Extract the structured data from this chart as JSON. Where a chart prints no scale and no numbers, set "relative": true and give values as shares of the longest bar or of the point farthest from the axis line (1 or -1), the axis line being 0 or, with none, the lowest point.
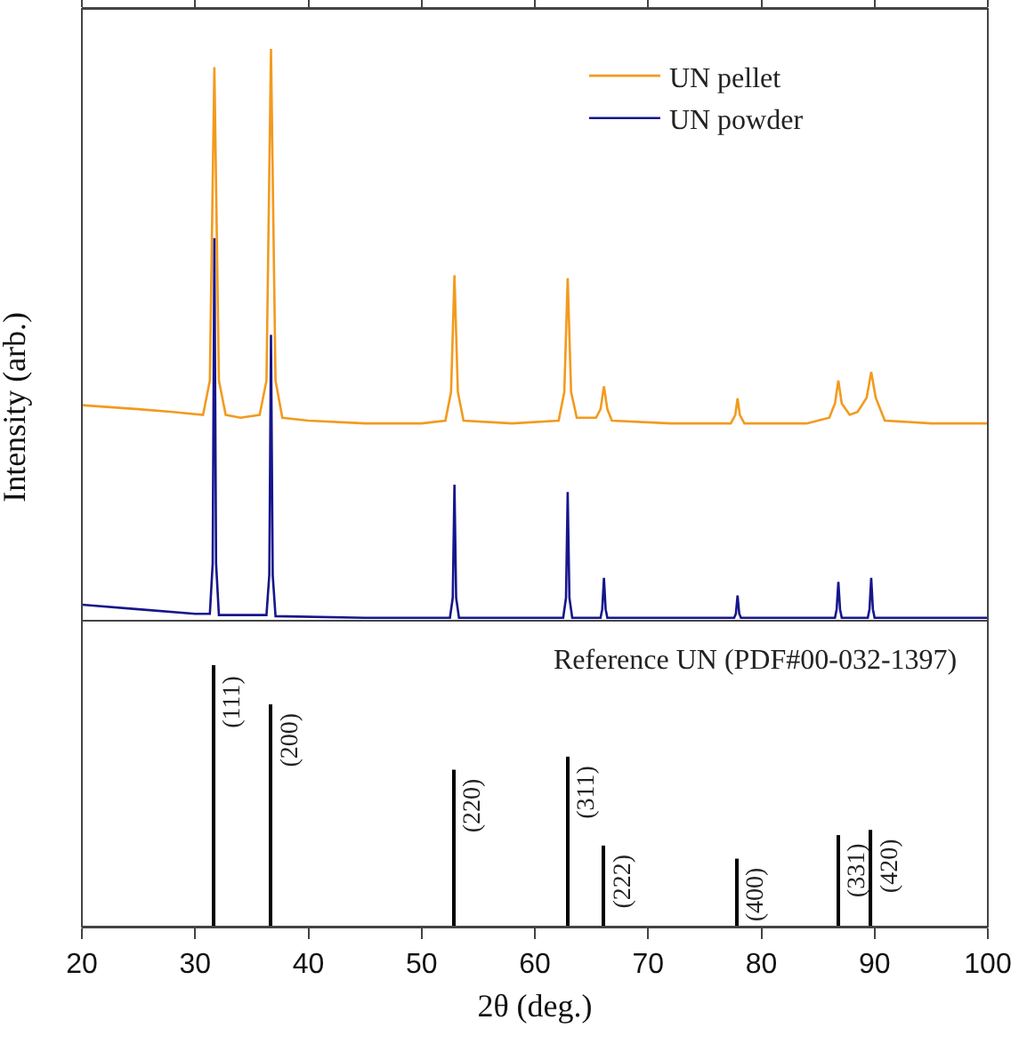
{
  "chart_data": [
    {
      "type": "line",
      "relative": true,
      "ylabel": "Intensity (arb.)",
      "xlim": [
        20,
        100
      ],
      "xticks": [
        20,
        30,
        40,
        50,
        60,
        70,
        80,
        90,
        100
      ],
      "tick_labels": false,
      "legend": "top right",
      "series": [
        {
          "name": "UN pellet",
          "color": "#f39a1e",
          "x": [
            20,
            25,
            28,
            30.7,
            31.3,
            31.7,
            32.1,
            32.7,
            34,
            35.7,
            36.3,
            36.7,
            37.1,
            37.7,
            40,
            45,
            50,
            52.1,
            52.6,
            52.9,
            53.2,
            53.7,
            58,
            62.1,
            62.6,
            62.9,
            63.2,
            63.7,
            65.4,
            65.8,
            66.1,
            66.4,
            66.8,
            72,
            77.3,
            77.7,
            77.9,
            78.1,
            78.5,
            84,
            86.0,
            86.5,
            86.8,
            87.1,
            87.8,
            88.5,
            89.3,
            89.7,
            90.1,
            90.9,
            95,
            100
          ],
          "values": [
            0.377,
            0.37,
            0.365,
            0.36,
            0.42,
            0.968,
            0.42,
            0.36,
            0.355,
            0.36,
            0.42,
            1.0,
            0.42,
            0.355,
            0.35,
            0.345,
            0.345,
            0.35,
            0.4,
            0.604,
            0.4,
            0.35,
            0.345,
            0.35,
            0.4,
            0.599,
            0.4,
            0.355,
            0.355,
            0.37,
            0.41,
            0.37,
            0.35,
            0.345,
            0.345,
            0.36,
            0.389,
            0.36,
            0.345,
            0.345,
            0.355,
            0.38,
            0.42,
            0.38,
            0.36,
            0.365,
            0.39,
            0.435,
            0.39,
            0.35,
            0.345,
            0.345
          ]
        },
        {
          "name": "UN powder",
          "color": "#16168c",
          "x": [
            20,
            25,
            30,
            31.3,
            31.55,
            31.7,
            31.85,
            32.1,
            36.3,
            36.55,
            36.7,
            36.85,
            37.1,
            45,
            52.5,
            52.75,
            52.9,
            53.05,
            53.3,
            62.5,
            62.75,
            62.9,
            63.05,
            63.3,
            65.8,
            65.95,
            66.1,
            66.25,
            66.4,
            77.6,
            77.75,
            77.9,
            78.05,
            78.2,
            86.5,
            86.65,
            86.8,
            86.95,
            87.1,
            89.4,
            89.55,
            89.7,
            89.85,
            90,
            100
          ],
          "values": [
            0.028,
            0.02,
            0.012,
            0.012,
            0.1,
            0.669,
            0.1,
            0.01,
            0.01,
            0.08,
            0.5,
            0.08,
            0.008,
            0.005,
            0.005,
            0.04,
            0.238,
            0.04,
            0.005,
            0.005,
            0.04,
            0.225,
            0.04,
            0.005,
            0.005,
            0.02,
            0.075,
            0.02,
            0.005,
            0.005,
            0.012,
            0.044,
            0.012,
            0.005,
            0.005,
            0.02,
            0.068,
            0.02,
            0.005,
            0.005,
            0.02,
            0.075,
            0.02,
            0.005,
            0.005
          ]
        }
      ]
    },
    {
      "type": "bar",
      "relative": true,
      "xlabel": "2θ (deg.)",
      "xlim": [
        20,
        100
      ],
      "xticks": [
        20,
        30,
        40,
        50,
        60,
        70,
        80,
        90,
        100
      ],
      "tick_labels": "x",
      "x": [
        31.7,
        36.7,
        52.9,
        62.9,
        66.1,
        77.9,
        86.8,
        89.7
      ],
      "values": [
        1,
        0.85,
        0.6,
        0.65,
        0.31,
        0.26,
        0.35,
        0.37
      ],
      "color": "#000000",
      "annotations": [
        "Reference UN (PDF#00-032-1397)",
        {
          "text": "(111)",
          "x": 31.7,
          "y": 1
        },
        {
          "text": "(200)",
          "x": 36.7,
          "y": 0.85
        },
        {
          "text": "(220)",
          "x": 52.9,
          "y": 0.6
        },
        {
          "text": "(311)",
          "x": 62.9,
          "y": 0.65
        },
        {
          "text": "(222)",
          "x": 66.1,
          "y": 0.31
        },
        {
          "text": "(400)",
          "x": 77.9,
          "y": 0.26
        },
        {
          "text": "(331)",
          "x": 86.8,
          "y": 0.35
        },
        {
          "text": "(420)",
          "x": 89.7,
          "y": 0.37
        }
      ]
    }
  ]
}
